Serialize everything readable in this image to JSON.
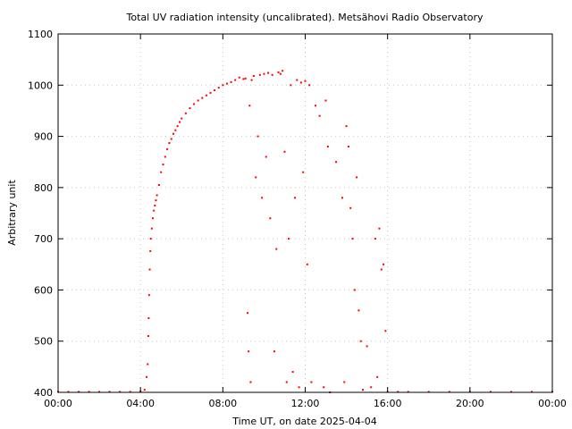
{
  "chart_data": {
    "type": "scatter",
    "title": "Total UV radiation intensity (uncalibrated). Metsähovi Radio Observatory",
    "xlabel": "Time UT, on date 2025-04-04",
    "ylabel": "Arbitrary unit",
    "xlim": [
      0,
      24
    ],
    "ylim": [
      400,
      1100
    ],
    "x_ticks": [
      {
        "value": 0,
        "label": "00:00"
      },
      {
        "value": 4,
        "label": "04:00"
      },
      {
        "value": 8,
        "label": "08:00"
      },
      {
        "value": 12,
        "label": "12:00"
      },
      {
        "value": 16,
        "label": "16:00"
      },
      {
        "value": 20,
        "label": "20:00"
      },
      {
        "value": 24,
        "label": "00:00"
      }
    ],
    "y_ticks": [
      400,
      500,
      600,
      700,
      800,
      900,
      1000,
      1100
    ],
    "grid": true,
    "point_color": "#ff0000",
    "series": [
      {
        "x": [
          0.0,
          0.5,
          1.0,
          1.5,
          2.0,
          2.5,
          3.0,
          3.5,
          4.0,
          4.2,
          4.3,
          4.35,
          4.38,
          4.4,
          4.42,
          4.45,
          4.48,
          4.5,
          4.55,
          4.6,
          4.65,
          4.7,
          4.75,
          4.8,
          4.9,
          5.0,
          5.1,
          5.2,
          5.3,
          5.4,
          5.5,
          5.6,
          5.7,
          5.8,
          5.9,
          6.0,
          6.2,
          6.4,
          6.6,
          6.8,
          7.0,
          7.2,
          7.4,
          7.6,
          7.8,
          8.0,
          8.2,
          8.4,
          8.6,
          8.8,
          9.0,
          9.1,
          9.2,
          9.25,
          9.3,
          9.35,
          9.4,
          9.5,
          9.6,
          9.7,
          9.8,
          9.9,
          10.0,
          10.1,
          10.2,
          10.3,
          10.4,
          10.5,
          10.6,
          10.7,
          10.8,
          10.9,
          11.0,
          11.1,
          11.2,
          11.3,
          11.4,
          11.5,
          11.6,
          11.7,
          11.8,
          11.9,
          12.0,
          12.1,
          12.2,
          12.3,
          12.5,
          12.7,
          12.9,
          13.0,
          13.1,
          13.2,
          13.5,
          13.8,
          13.9,
          14.0,
          14.1,
          14.2,
          14.3,
          14.4,
          14.5,
          14.6,
          14.7,
          14.8,
          15.0,
          15.2,
          15.4,
          15.5,
          15.6,
          15.7,
          15.8,
          15.9,
          16.0,
          16.5,
          17.0,
          18.0,
          19.0,
          20.0,
          21.0,
          22.0,
          23.0,
          24.0
        ],
        "y": [
          401,
          401,
          401,
          401,
          401,
          401,
          401,
          401,
          402,
          405,
          430,
          455,
          510,
          545,
          590,
          640,
          676,
          700,
          720,
          740,
          755,
          765,
          775,
          785,
          805,
          830,
          845,
          860,
          875,
          887,
          895,
          905,
          912,
          920,
          928,
          935,
          945,
          955,
          963,
          970,
          975,
          980,
          985,
          990,
          995,
          1000,
          1003,
          1006,
          1010,
          1015,
          1012,
          1013,
          555,
          480,
          960,
          420,
          1010,
          1018,
          820,
          900,
          1020,
          780,
          1022,
          860,
          1024,
          740,
          1020,
          480,
          680,
          1025,
          1022,
          1028,
          870,
          420,
          700,
          1000,
          440,
          780,
          1010,
          410,
          1005,
          830,
          1008,
          650,
          1000,
          420,
          960,
          940,
          410,
          970,
          880,
          400,
          850,
          780,
          420,
          920,
          880,
          760,
          700,
          600,
          820,
          560,
          500,
          405,
          490,
          410,
          700,
          430,
          720,
          640,
          650,
          520,
          401,
          401,
          401,
          401,
          401,
          401,
          401,
          401,
          401,
          401
        ]
      }
    ]
  }
}
